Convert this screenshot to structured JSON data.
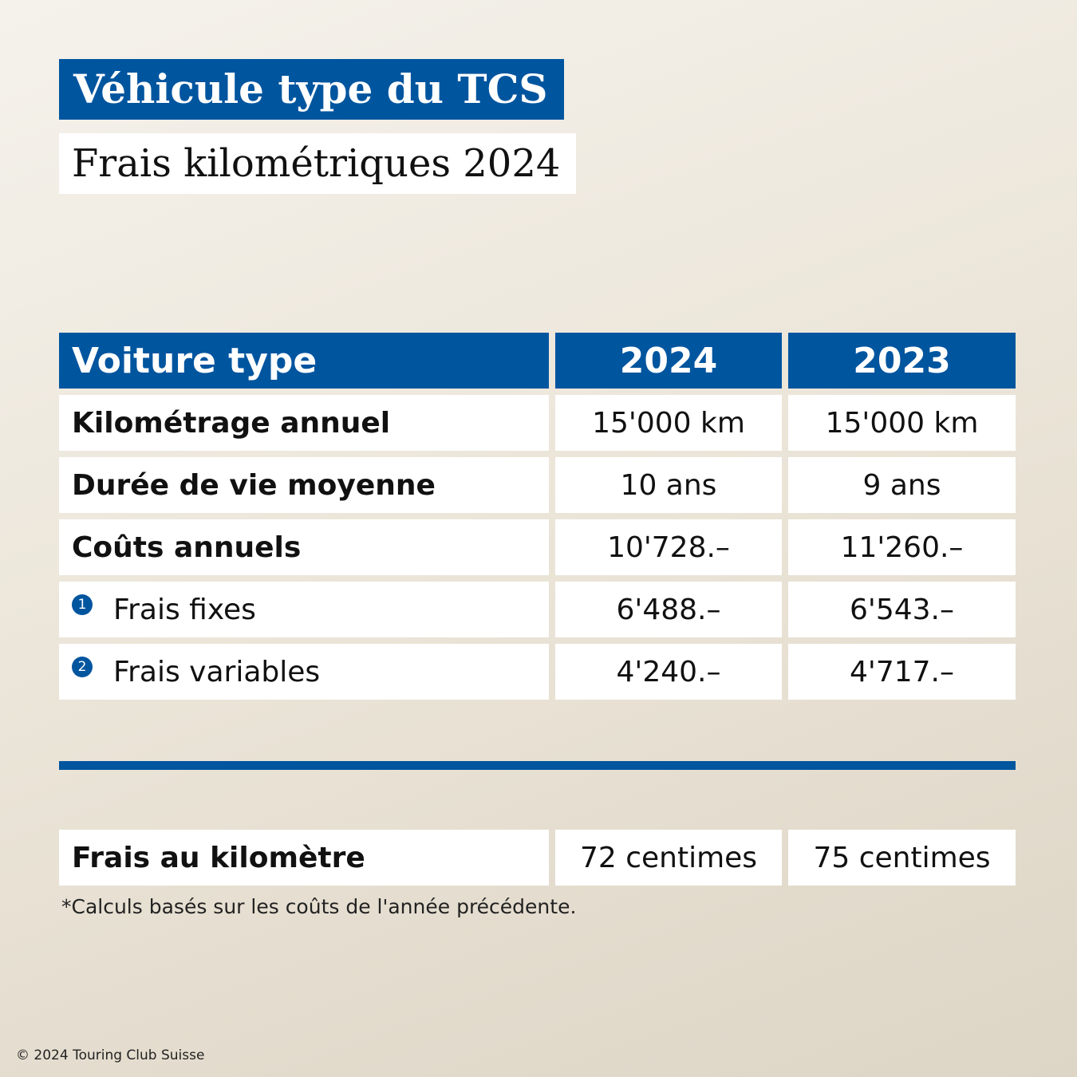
{
  "title": "Véhicule type du TCS",
  "subtitle": "Frais kilométriques 2024",
  "table": {
    "headers": [
      "Voiture type",
      "2024",
      "2023"
    ],
    "rows": [
      {
        "label": "Kilométrage annuel",
        "v2024": "15'000 km",
        "v2023": "15'000 km",
        "bold": true,
        "badge": ""
      },
      {
        "label": "Durée de vie moyenne",
        "v2024": "10 ans",
        "v2023": "9 ans",
        "bold": true,
        "badge": ""
      },
      {
        "label": "Coûts annuels",
        "v2024": "10'728.–",
        "v2023": "11'260.–",
        "bold": true,
        "badge": ""
      },
      {
        "label": "Frais fixes",
        "v2024": "6'488.–",
        "v2023": "6'543.–",
        "bold": false,
        "badge": "1"
      },
      {
        "label": "Frais variables",
        "v2024": "4'240.–",
        "v2023": "4'717.–",
        "bold": false,
        "badge": "2"
      }
    ]
  },
  "per_km": {
    "label": "Frais au kilomètre",
    "v2024": "72 centimes",
    "v2023": "75 centimes"
  },
  "footnote": "*Calculs basés sur les coûts de l'année précédente.",
  "copyright": "© 2024 Touring Club Suisse",
  "colors": {
    "accent": "#00559f",
    "cell_background": "#ffffff",
    "text": "#111111"
  }
}
